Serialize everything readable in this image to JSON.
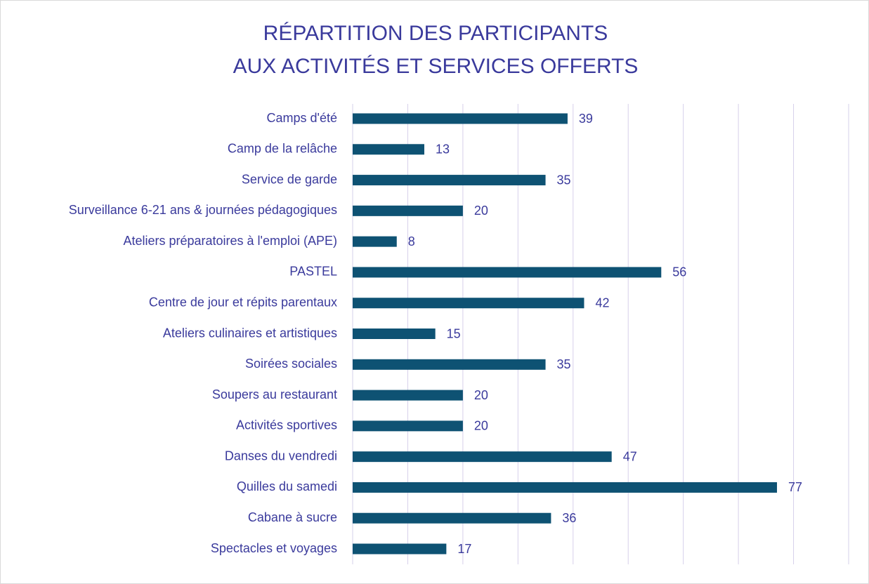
{
  "chart_data": {
    "type": "bar",
    "orientation": "horizontal",
    "title": [
      "RÉPARTITION DES PARTICIPANTS",
      "AUX ACTIVITÉS ET SERVICES OFFERTS"
    ],
    "categories": [
      "Camps d'été",
      "Camp de la relâche",
      "Service de garde",
      "Surveillance 6-21 ans & journées pédagogiques",
      "Ateliers préparatoires à l'emploi (APE)",
      "PASTEL",
      "Centre de jour et répits parentaux",
      "Ateliers culinaires et artistiques",
      "Soirées sociales",
      "Soupers au restaurant",
      "Activités sportives",
      "Danses du vendredi",
      "Quilles du samedi",
      "Cabane à sucre",
      "Spectacles et voyages"
    ],
    "values": [
      39,
      13,
      35,
      20,
      8,
      56,
      42,
      15,
      35,
      20,
      20,
      47,
      77,
      36,
      17
    ],
    "color": "#0e5273",
    "xlim": [
      0,
      90
    ],
    "xticks": [
      0,
      10,
      20,
      30,
      40,
      50,
      60,
      70,
      80,
      90
    ],
    "grid": true
  }
}
